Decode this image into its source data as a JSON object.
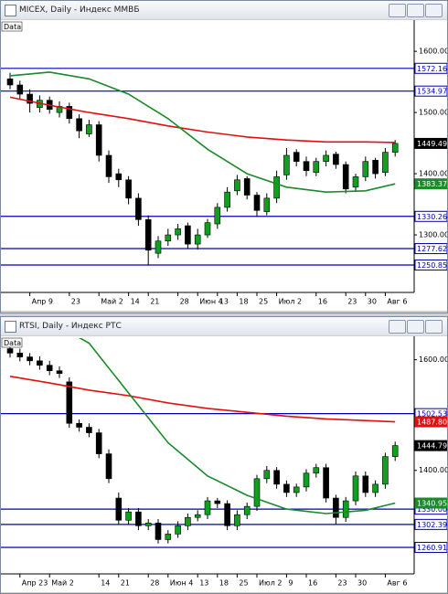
{
  "chart_data": [
    {
      "type": "candlestick",
      "title": "MICEX, Daily - Индекс ММВБ",
      "data_label": "Data",
      "categories": [
        null,
        null,
        "Апр 9",
        null,
        null,
        null,
        "23",
        null,
        null,
        "Май 2",
        null,
        null,
        "14",
        null,
        "21",
        null,
        null,
        "28",
        null,
        "Июн 4",
        null,
        "13",
        null,
        "18",
        null,
        "25",
        null,
        "Июл 2",
        null,
        null,
        null,
        "16",
        null,
        null,
        "23",
        null,
        "30",
        null,
        "Авг 6",
        null
      ],
      "open": [
        1555,
        1545,
        1530,
        1508,
        1520,
        1500,
        1510,
        1490,
        1465,
        1480,
        1430,
        1400,
        1390,
        1360,
        1325,
        1270,
        1290,
        1300,
        1315,
        1285,
        1300,
        1318,
        1345,
        1372,
        1392,
        1365,
        1338,
        1360,
        1398,
        1435,
        1420,
        1402,
        1420,
        1432,
        1415,
        1378,
        1395,
        1422,
        1402,
        1435
      ],
      "high": [
        1565,
        1552,
        1538,
        1528,
        1526,
        1518,
        1516,
        1497,
        1488,
        1486,
        1438,
        1408,
        1396,
        1368,
        1332,
        1298,
        1310,
        1318,
        1320,
        1310,
        1326,
        1352,
        1378,
        1398,
        1396,
        1370,
        1368,
        1405,
        1442,
        1440,
        1428,
        1426,
        1438,
        1436,
        1420,
        1400,
        1428,
        1426,
        1442,
        1455
      ],
      "low": [
        1538,
        1522,
        1500,
        1500,
        1498,
        1492,
        1482,
        1458,
        1460,
        1420,
        1385,
        1378,
        1350,
        1315,
        1250,
        1262,
        1282,
        1292,
        1278,
        1276,
        1295,
        1310,
        1338,
        1365,
        1358,
        1330,
        1332,
        1352,
        1390,
        1412,
        1396,
        1396,
        1412,
        1408,
        1368,
        1372,
        1388,
        1392,
        1396,
        1428
      ],
      "close": [
        1545,
        1530,
        1515,
        1520,
        1505,
        1510,
        1490,
        1470,
        1480,
        1430,
        1395,
        1390,
        1360,
        1325,
        1275,
        1290,
        1300,
        1310,
        1285,
        1300,
        1320,
        1345,
        1370,
        1390,
        1365,
        1340,
        1360,
        1395,
        1430,
        1420,
        1405,
        1420,
        1430,
        1415,
        1375,
        1395,
        1420,
        1400,
        1435,
        1449.49
      ],
      "close_tag": true,
      "up_color": "#10a020",
      "down_color": "#000000",
      "series": [
        {
          "color": "#e01010",
          "x": [
            0,
            4,
            8,
            12,
            16,
            20,
            24,
            28,
            32,
            36,
            39
          ],
          "values": [
            1525,
            1512,
            1500,
            1490,
            1478,
            1468,
            1460,
            1455,
            1452,
            1452,
            1451
          ]
        },
        {
          "color": "#1a8a2a",
          "x": [
            0,
            4,
            8,
            12,
            16,
            20,
            24,
            28,
            32,
            36,
            39
          ],
          "values": [
            1560,
            1566,
            1555,
            1530,
            1490,
            1440,
            1400,
            1378,
            1370,
            1372,
            1383.37
          ],
          "tag": true
        }
      ],
      "levels": [
        1572.16,
        1534.97,
        1330.26,
        1277.62,
        1250.85
      ],
      "level_color": "#0000b0",
      "ylim": [
        1206,
        1648
      ],
      "yticks": [
        {
          "value": 1300,
          "label": "1300.00"
        },
        {
          "value": 1400,
          "label": "1400.00"
        },
        {
          "value": 1500,
          "label": "1500.00"
        },
        {
          "value": 1600,
          "label": "1600.00"
        }
      ]
    },
    {
      "type": "candlestick",
      "title": "RTSI, Daily - Индекс РТС",
      "data_label": "Data",
      "categories": [
        null,
        "Апр 23",
        null,
        null,
        "Май 2",
        null,
        null,
        null,
        null,
        "14",
        null,
        "21",
        null,
        null,
        "28",
        null,
        "Июн 4",
        null,
        null,
        "13",
        null,
        "18",
        null,
        "25",
        null,
        "Июл 2",
        null,
        null,
        "9",
        null,
        "16",
        null,
        null,
        "23",
        null,
        "30",
        null,
        null,
        "Авг 6",
        null
      ],
      "open": [
        1620,
        1612,
        1605,
        1598,
        1590,
        1580,
        1560,
        1485,
        1478,
        1468,
        1430,
        1350,
        1310,
        1325,
        1300,
        1305,
        1275,
        1285,
        1300,
        1315,
        1320,
        1345,
        1340,
        1300,
        1320,
        1335,
        1385,
        1400,
        1375,
        1360,
        1370,
        1395,
        1405,
        1350,
        1315,
        1345,
        1390,
        1360,
        1375,
        1425
      ],
      "high": [
        1628,
        1620,
        1612,
        1606,
        1598,
        1588,
        1568,
        1492,
        1485,
        1475,
        1438,
        1360,
        1332,
        1332,
        1312,
        1312,
        1292,
        1308,
        1322,
        1328,
        1352,
        1350,
        1346,
        1328,
        1342,
        1392,
        1408,
        1406,
        1382,
        1376,
        1402,
        1412,
        1412,
        1356,
        1352,
        1398,
        1398,
        1382,
        1432,
        1452
      ],
      "low": [
        1604,
        1597,
        1590,
        1582,
        1572,
        1567,
        1477,
        1470,
        1460,
        1422,
        1377,
        1302,
        1302,
        1292,
        1292,
        1268,
        1268,
        1278,
        1292,
        1308,
        1312,
        1332,
        1292,
        1292,
        1312,
        1327,
        1377,
        1367,
        1352,
        1352,
        1362,
        1387,
        1342,
        1302,
        1307,
        1337,
        1352,
        1352,
        1367,
        1417
      ],
      "close": [
        1612,
        1605,
        1598,
        1590,
        1580,
        1575,
        1485,
        1478,
        1468,
        1430,
        1385,
        1310,
        1325,
        1300,
        1305,
        1275,
        1285,
        1300,
        1315,
        1320,
        1345,
        1340,
        1300,
        1320,
        1335,
        1385,
        1400,
        1375,
        1360,
        1370,
        1395,
        1405,
        1350,
        1315,
        1345,
        1390,
        1360,
        1375,
        1425,
        1444.79
      ],
      "close_tag": true,
      "up_color": "#10a020",
      "down_color": "#000000",
      "series": [
        {
          "color": "#e01010",
          "x": [
            0,
            4,
            8,
            12,
            16,
            20,
            24,
            28,
            32,
            36,
            39
          ],
          "values": [
            1570,
            1558,
            1545,
            1535,
            1522,
            1512,
            1505,
            1498,
            1493,
            1490,
            1487.8
          ],
          "tag": "1487.80"
        },
        {
          "color": "#1a8a2a",
          "x": [
            7,
            8,
            12,
            16,
            20,
            24,
            28,
            32,
            36,
            39
          ],
          "values": [
            1640,
            1630,
            1540,
            1450,
            1390,
            1355,
            1330,
            1322,
            1328,
            1340.95
          ],
          "tag": true
        }
      ],
      "levels": [
        1502.53,
        {
          "value": 1330,
          "label": "1330.00"
        },
        1302.39,
        1260.91
      ],
      "level_color": "#0000b0",
      "ylim": [
        1213,
        1639
      ],
      "yticks": [
        {
          "value": 1400,
          "label": "1400.00"
        },
        {
          "value": 1600,
          "label": "1600.00"
        }
      ]
    }
  ]
}
